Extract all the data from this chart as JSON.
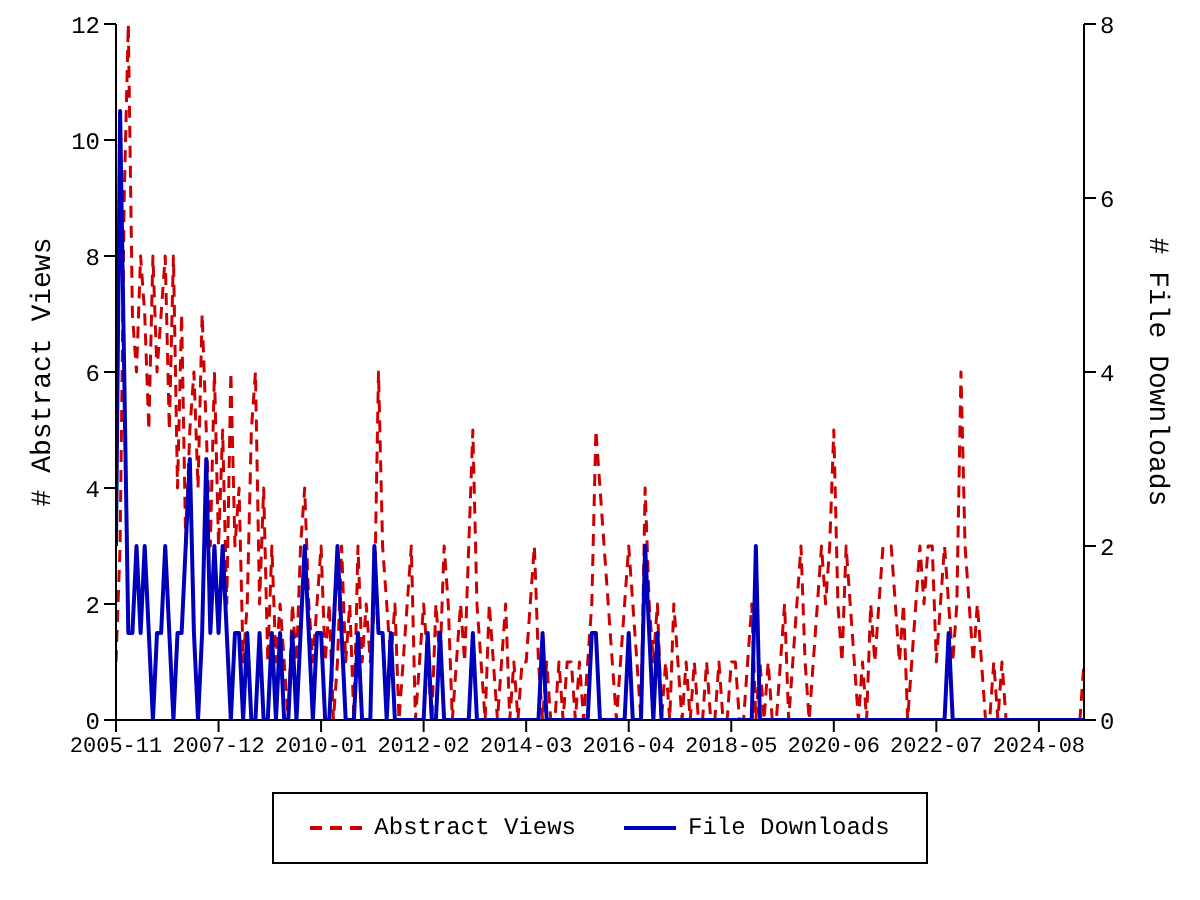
{
  "chart_data": {
    "type": "line",
    "ylabel": "# Abstract Views",
    "y2label": "# File Downloads",
    "x": [
      "2005-11",
      "2005-12",
      "2006-01",
      "2006-02",
      "2006-03",
      "2006-04",
      "2006-05",
      "2006-06",
      "2006-07",
      "2006-08",
      "2006-09",
      "2006-10",
      "2006-11",
      "2006-12",
      "2007-01",
      "2007-02",
      "2007-03",
      "2007-04",
      "2007-05",
      "2007-06",
      "2007-07",
      "2007-08",
      "2007-09",
      "2007-10",
      "2007-11",
      "2007-12",
      "2008-01",
      "2008-02",
      "2008-03",
      "2008-04",
      "2008-05",
      "2008-06",
      "2008-07",
      "2008-08",
      "2008-09",
      "2008-10",
      "2008-11",
      "2008-12",
      "2009-01",
      "2009-02",
      "2009-03",
      "2009-04",
      "2009-05",
      "2009-06",
      "2009-07",
      "2009-08",
      "2009-09",
      "2009-10",
      "2009-11",
      "2009-12",
      "2010-01",
      "2010-02",
      "2010-03",
      "2010-04",
      "2010-05",
      "2010-06",
      "2010-07",
      "2010-08",
      "2010-09",
      "2010-10",
      "2010-11",
      "2010-12",
      "2011-01",
      "2011-02",
      "2011-03",
      "2011-04",
      "2011-05",
      "2011-06",
      "2011-07",
      "2011-08",
      "2011-09",
      "2011-10",
      "2011-11",
      "2011-12",
      "2012-01",
      "2012-02",
      "2012-03",
      "2012-04",
      "2012-05",
      "2012-06",
      "2012-07",
      "2012-08",
      "2012-09",
      "2012-10",
      "2012-11",
      "2012-12",
      "2013-01",
      "2013-02",
      "2013-03",
      "2013-04",
      "2013-05",
      "2013-06",
      "2013-07",
      "2013-08",
      "2013-09",
      "2013-10",
      "2013-11",
      "2013-12",
      "2014-01",
      "2014-02",
      "2014-03",
      "2014-04",
      "2014-05",
      "2014-06",
      "2014-07",
      "2014-08",
      "2014-09",
      "2014-10",
      "2014-11",
      "2014-12",
      "2015-01",
      "2015-02",
      "2015-03",
      "2015-04",
      "2015-05",
      "2015-06",
      "2015-07",
      "2015-08",
      "2015-09",
      "2015-10",
      "2015-11",
      "2015-12",
      "2016-01",
      "2016-02",
      "2016-03",
      "2016-04",
      "2016-05",
      "2016-06",
      "2016-07",
      "2016-08",
      "2016-09",
      "2016-10",
      "2016-11",
      "2016-12",
      "2017-01",
      "2017-02",
      "2017-03",
      "2017-04",
      "2017-05",
      "2017-06",
      "2017-07",
      "2017-08",
      "2017-09",
      "2017-10",
      "2017-11",
      "2017-12",
      "2018-01",
      "2018-02",
      "2018-03",
      "2018-04",
      "2018-05",
      "2018-06",
      "2018-07",
      "2018-08",
      "2018-09",
      "2018-10",
      "2018-11",
      "2018-12",
      "2019-01",
      "2019-02",
      "2019-03",
      "2019-04",
      "2019-05",
      "2019-06",
      "2019-07",
      "2019-08",
      "2019-09",
      "2019-10",
      "2019-11",
      "2019-12",
      "2020-01",
      "2020-02",
      "2020-03",
      "2020-04",
      "2020-05",
      "2020-06",
      "2020-07",
      "2020-08",
      "2020-09",
      "2020-10",
      "2020-11",
      "2020-12",
      "2021-01",
      "2021-02",
      "2021-03",
      "2021-04",
      "2021-05",
      "2021-06",
      "2021-07",
      "2021-08",
      "2021-09",
      "2021-10",
      "2021-11",
      "2021-12",
      "2022-01",
      "2022-02",
      "2022-03",
      "2022-04",
      "2022-05",
      "2022-06",
      "2022-07",
      "2022-08",
      "2022-09",
      "2022-10",
      "2022-11",
      "2022-12",
      "2023-01",
      "2023-02",
      "2023-03",
      "2023-04",
      "2023-05",
      "2023-06",
      "2023-07",
      "2023-08",
      "2023-09",
      "2023-10",
      "2023-11",
      "2023-12",
      "2024-01",
      "2024-02",
      "2024-03",
      "2024-04",
      "2024-05",
      "2024-06",
      "2024-07",
      "2024-08",
      "2024-09",
      "2024-10",
      "2024-11",
      "2024-12",
      "2025-01",
      "2025-02",
      "2025-03",
      "2025-04",
      "2025-05",
      "2025-06",
      "2025-07"
    ],
    "series": [
      {
        "name": "Abstract Views",
        "color": "#cc0000",
        "line_style": "dashed",
        "values": [
          1,
          3,
          9,
          12,
          7,
          6,
          8,
          7,
          5,
          8,
          6,
          7,
          8,
          5,
          8,
          4,
          7,
          3,
          5,
          6,
          4,
          7,
          5,
          3,
          6,
          3,
          5,
          2,
          6,
          3,
          4,
          1,
          2,
          5,
          6,
          2,
          4,
          1,
          3,
          1,
          2,
          1,
          0,
          2,
          1,
          3,
          4,
          2,
          1,
          2,
          3,
          1,
          2,
          0,
          1,
          3,
          1,
          2,
          0,
          3,
          1,
          2,
          1,
          2,
          6,
          3,
          2,
          1,
          2,
          0,
          1,
          2,
          3,
          0,
          1,
          2,
          1,
          0,
          2,
          1,
          3,
          2,
          0,
          1,
          2,
          1,
          3,
          5,
          2,
          1,
          0,
          2,
          1,
          0,
          1,
          2,
          0,
          1,
          0,
          1,
          1,
          2,
          3,
          1,
          0,
          1,
          0,
          0,
          1,
          0,
          1,
          1,
          0,
          1,
          0,
          1,
          2,
          5,
          4,
          3,
          2,
          1,
          0,
          1,
          2,
          3,
          2,
          1,
          0,
          4,
          2,
          1,
          2,
          0,
          1,
          0,
          2,
          1,
          0,
          1,
          0,
          1,
          0,
          0,
          1,
          0,
          0,
          1,
          0,
          0,
          1,
          1,
          0,
          0,
          1,
          2,
          0,
          1,
          0,
          1,
          0,
          0,
          1,
          2,
          0,
          1,
          2,
          3,
          1,
          0,
          1,
          2,
          3,
          2,
          3,
          5,
          2,
          1,
          3,
          2,
          1,
          0,
          1,
          0,
          2,
          1,
          2,
          3,
          3,
          3,
          2,
          1,
          2,
          0,
          1,
          2,
          3,
          2,
          3,
          3,
          1,
          2,
          3,
          2,
          1,
          2,
          6,
          3,
          2,
          1,
          2,
          1,
          0,
          0,
          1,
          0,
          1,
          0,
          0,
          0,
          0,
          0,
          0,
          0,
          0,
          0,
          0,
          0,
          0,
          0,
          0,
          0,
          0,
          0,
          0,
          0,
          1
        ]
      },
      {
        "name": "File Downloads",
        "color": "#0000bb",
        "axis": "y2",
        "line_style": "solid",
        "values": [
          2,
          7,
          4,
          1,
          1,
          2,
          1,
          2,
          1,
          0,
          1,
          1,
          2,
          1,
          0,
          1,
          1,
          2,
          3,
          1,
          0,
          1,
          3,
          1,
          2,
          1,
          2,
          1,
          0,
          1,
          1,
          0,
          1,
          0,
          0,
          1,
          0,
          0,
          1,
          0,
          1,
          0,
          0,
          1,
          0,
          1,
          2,
          1,
          0,
          1,
          1,
          0,
          0,
          1,
          2,
          1,
          0,
          0,
          0,
          1,
          0,
          0,
          0,
          2,
          1,
          1,
          0,
          1,
          0,
          0,
          0,
          0,
          0,
          0,
          0,
          0,
          1,
          0,
          0,
          1,
          0,
          0,
          0,
          0,
          0,
          0,
          0,
          1,
          0,
          0,
          0,
          0,
          0,
          0,
          0,
          0,
          0,
          0,
          0,
          0,
          0,
          0,
          0,
          0,
          1,
          0,
          0,
          0,
          0,
          0,
          0,
          0,
          0,
          0,
          0,
          0,
          1,
          1,
          0,
          0,
          0,
          0,
          0,
          0,
          0,
          1,
          0,
          0,
          0,
          2,
          1,
          0,
          1,
          0,
          0,
          0,
          0,
          0,
          0,
          0,
          0,
          0,
          0,
          0,
          0,
          0,
          0,
          0,
          0,
          0,
          0,
          0,
          0,
          0,
          0,
          0,
          2,
          0,
          0,
          0,
          0,
          0,
          0,
          0,
          0,
          0,
          0,
          0,
          0,
          0,
          0,
          0,
          0,
          0,
          0,
          0,
          0,
          0,
          0,
          0,
          0,
          0,
          0,
          0,
          0,
          0,
          0,
          0,
          0,
          0,
          0,
          0,
          0,
          0,
          0,
          0,
          0,
          0,
          0,
          0,
          0,
          0,
          0,
          1,
          0,
          0,
          0,
          0,
          0,
          0,
          0,
          0,
          0,
          0,
          0,
          0,
          0,
          0,
          0,
          0,
          0,
          0,
          0,
          0,
          0,
          0,
          0,
          0,
          0,
          0,
          0,
          0,
          0,
          0,
          0,
          0,
          0
        ]
      }
    ],
    "xlim": [
      "2005-11",
      "2025-07"
    ],
    "xticks": [
      "2005-11",
      "2007-12",
      "2010-01",
      "2012-02",
      "2014-03",
      "2016-04",
      "2018-05",
      "2020-06",
      "2022-07",
      "2024-08"
    ],
    "ylim": [
      0,
      12
    ],
    "yticks": [
      0,
      2,
      4,
      6,
      8,
      10,
      12
    ],
    "y2lim": [
      0,
      8
    ],
    "y2ticks": [
      0,
      2,
      4,
      6,
      8
    ],
    "grid": false,
    "legend": "bottom",
    "marker": "none"
  }
}
